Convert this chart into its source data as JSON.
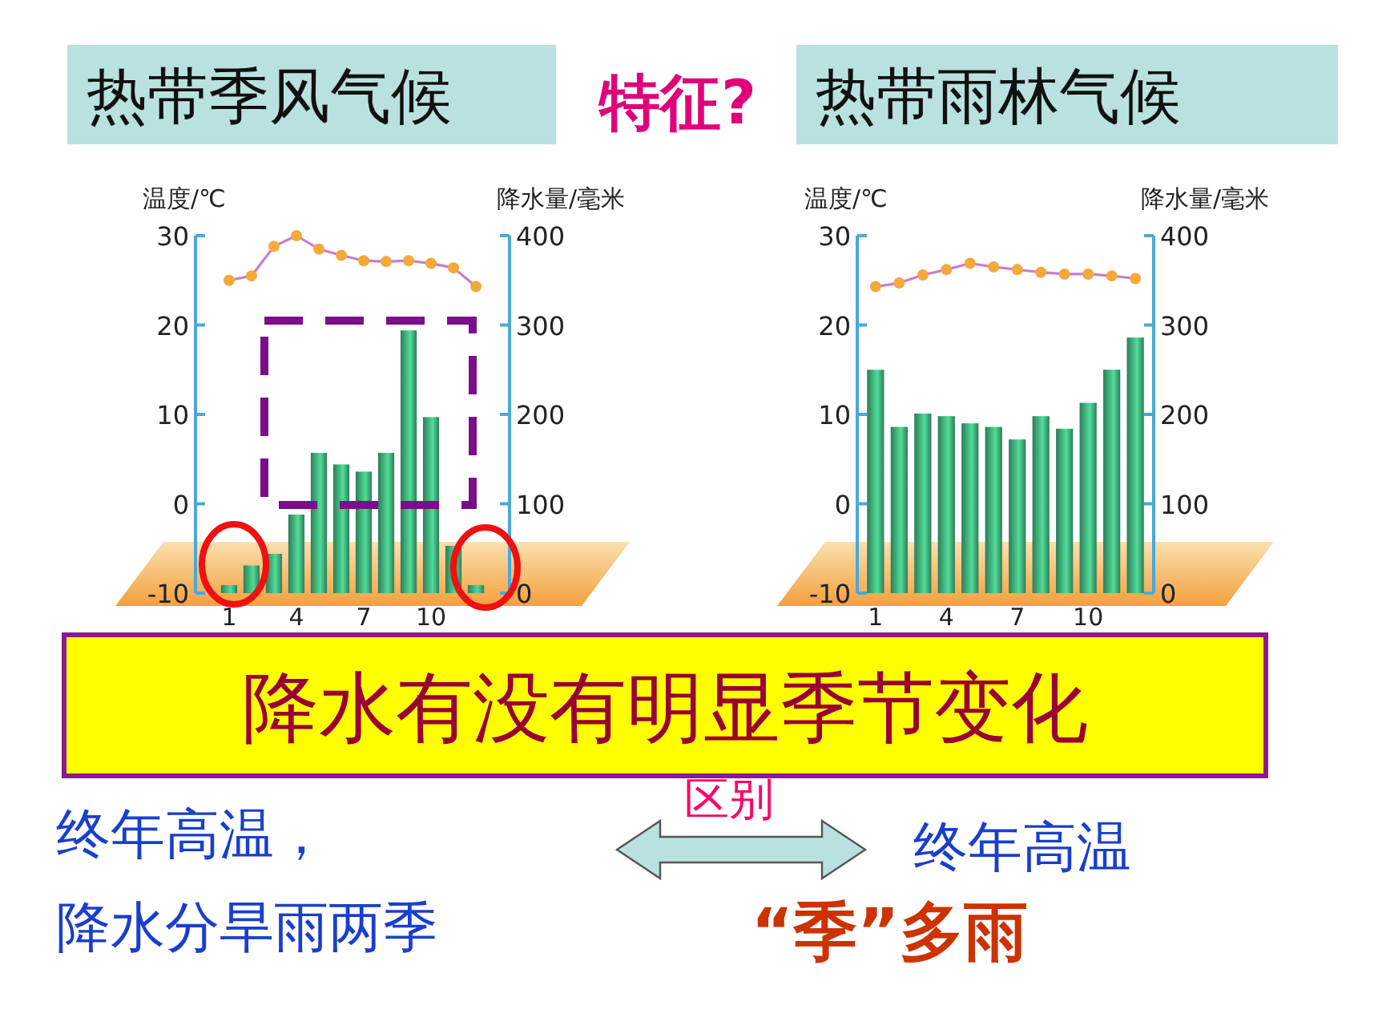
{
  "chart_data": [
    {
      "type": "bar",
      "title": "热带季风气候",
      "ylabel": "温度/℃",
      "y2label": "降水量/毫米",
      "categories": [
        "1",
        null,
        null,
        "4",
        null,
        null,
        "7",
        null,
        null,
        "10",
        null,
        null
      ],
      "series": [
        {
          "axis": "y2",
          "color": "#2e7d57",
          "values": [
            9,
            31,
            44,
            88,
            157,
            144,
            136,
            157,
            294,
            197,
            53,
            9
          ]
        },
        {
          "type": "line",
          "axis": "y",
          "color": "#f4a93a",
          "values": [
            25.0,
            25.5,
            28.8,
            30,
            28.5,
            27.8,
            27.2,
            27.1,
            27.2,
            26.9,
            26.4,
            24.3
          ]
        }
      ],
      "ylim": [
        -10,
        30
      ],
      "yticks": [
        -10,
        0,
        10,
        20,
        30
      ],
      "y2lim": [
        0,
        400
      ],
      "y2ticks": [
        0,
        100,
        200,
        300,
        400
      ],
      "marker": "circle",
      "grid": false,
      "annotations": [
        "特征?",
        "降水有没有明显季节变化",
        "区别",
        "终年高温，",
        "降水分旱雨两季"
      ]
    },
    {
      "type": "bar",
      "title": "热带雨林气候",
      "ylabel": "温度/℃",
      "y2label": "降水量/毫米",
      "categories": [
        "1",
        null,
        null,
        "4",
        null,
        null,
        "7",
        null,
        null,
        "10",
        null,
        null
      ],
      "series": [
        {
          "axis": "y2",
          "color": "#2e7d57",
          "values": [
            250,
            186,
            201,
            198,
            190,
            186,
            172,
            198,
            184,
            213,
            250,
            286
          ]
        },
        {
          "type": "line",
          "axis": "y",
          "color": "#f4a93a",
          "values": [
            24.3,
            24.7,
            25.6,
            26.2,
            26.9,
            26.5,
            26.2,
            25.9,
            25.7,
            25.7,
            25.5,
            25.2
          ]
        }
      ],
      "ylim": [
        -10,
        30
      ],
      "yticks": [
        -10,
        0,
        10,
        20,
        30
      ],
      "y2lim": [
        0,
        400
      ],
      "y2ticks": [
        0,
        100,
        200,
        300,
        400
      ],
      "marker": "circle",
      "grid": false,
      "annotations": [
        "终年高温",
        "“季”多雨"
      ]
    }
  ]
}
